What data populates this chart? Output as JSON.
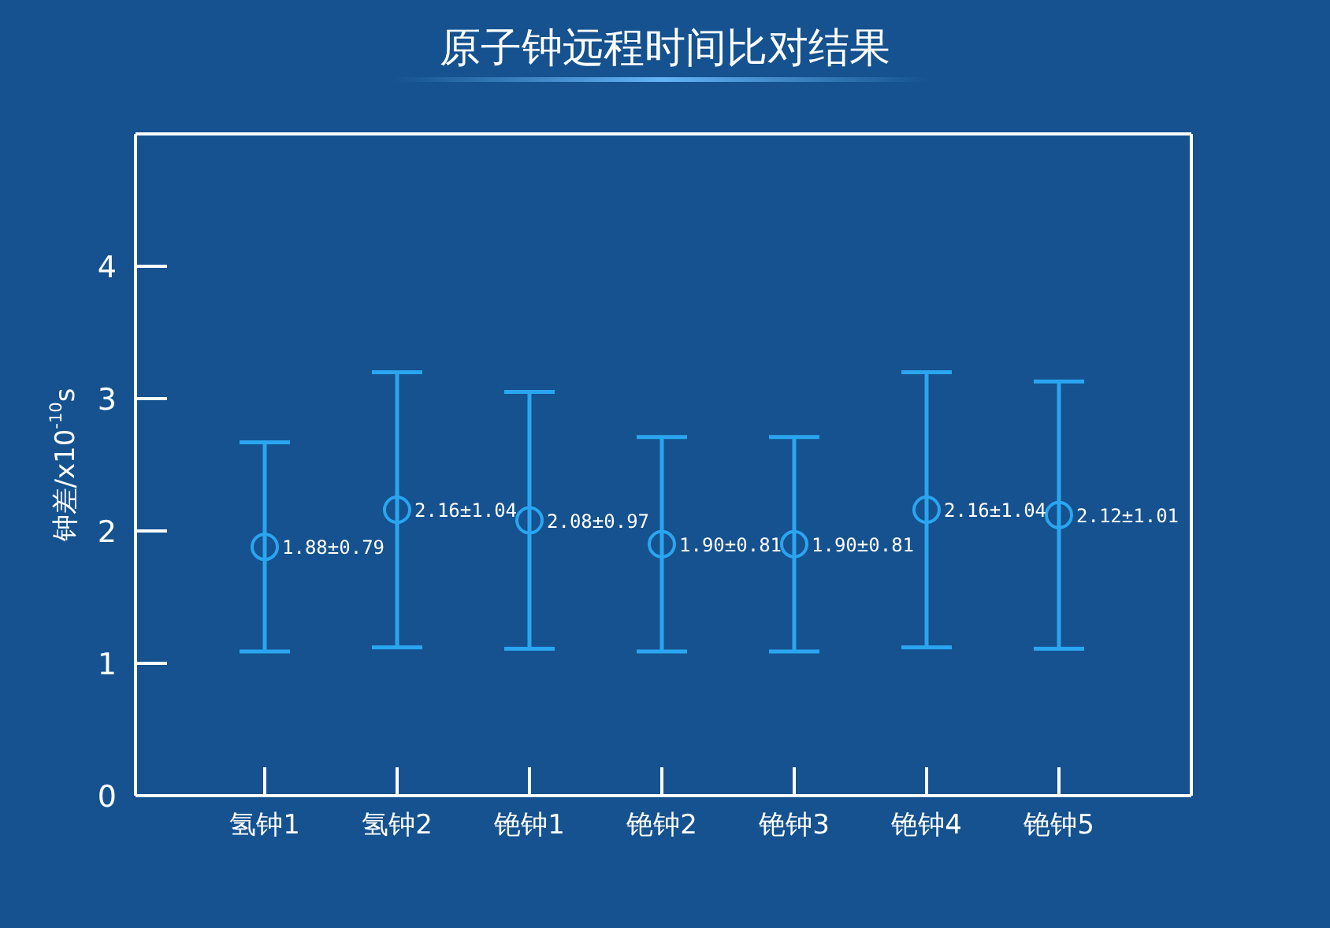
{
  "chart_data": {
    "type": "scatter",
    "title": "原子钟远程时间比对结果",
    "ylabel": "钟差/x10$^{-10}$s",
    "categories": [
      "氢钟1",
      "氢钟2",
      "铯钟1",
      "铯钟2",
      "铯钟3",
      "铯钟4",
      "铯钟5"
    ],
    "values": [
      1.88,
      2.16,
      2.08,
      1.9,
      1.9,
      2.16,
      2.12
    ],
    "errors": [
      0.79,
      1.04,
      0.97,
      0.81,
      0.81,
      1.04,
      1.01
    ],
    "value_labels": [
      "1.88±0.79",
      "2.16±1.04",
      "2.08±0.97",
      "1.90±0.81",
      "1.90±0.81",
      "2.16±1.04",
      "2.12±1.01"
    ],
    "color": "#2aa5f0",
    "marker": "circle",
    "ylim": [
      0,
      5
    ],
    "yticks": [
      0,
      1,
      2,
      3,
      4
    ]
  }
}
